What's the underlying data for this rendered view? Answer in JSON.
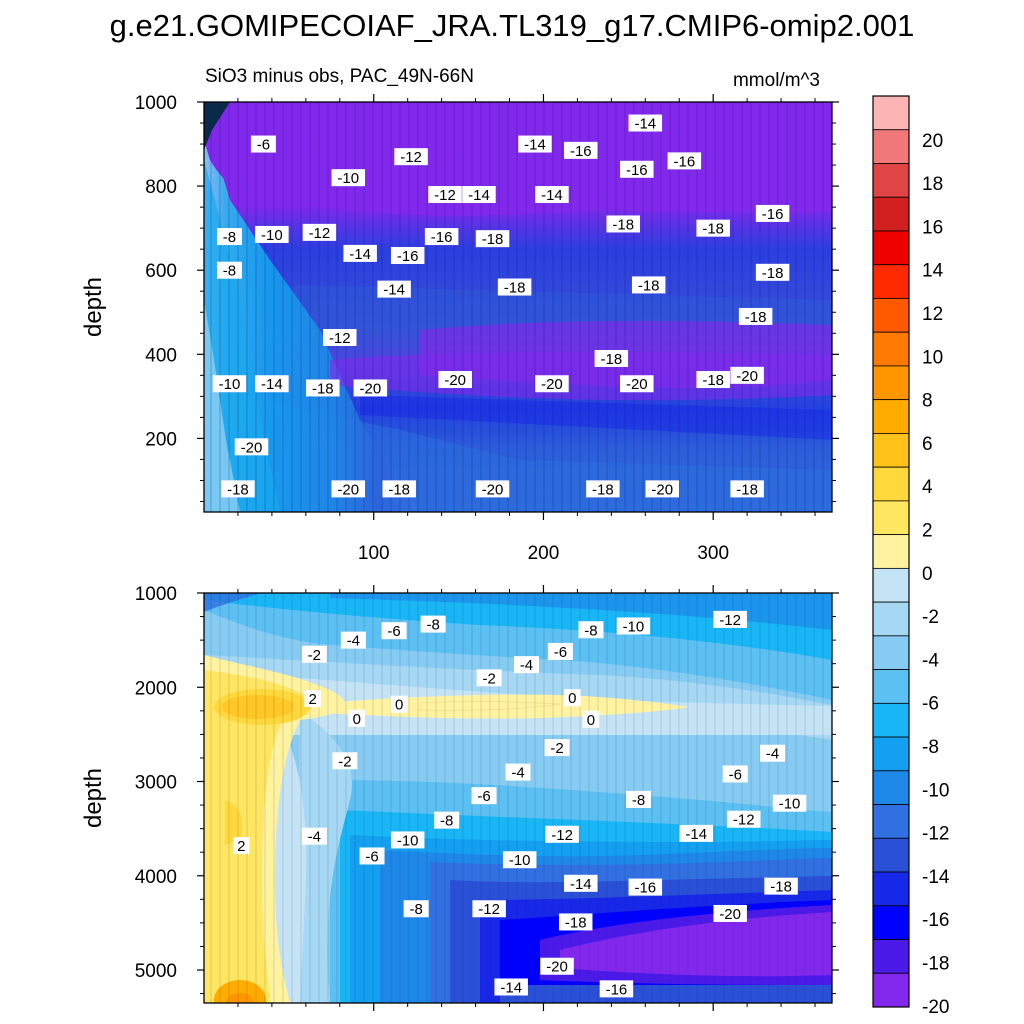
{
  "title": "g.e21.GOMIPECOIAF_JRA.TL319_g17.CMIP6-omip2.001",
  "subtitle_left": "SiO3 minus obs, PAC_49N-66N",
  "subtitle_right": "mmol/m^3",
  "chart_data": [
    {
      "type": "heatmap",
      "panel": "upper",
      "ylabel": "depth",
      "xlabel": "",
      "xlim": [
        0,
        370
      ],
      "ylim": [
        1000,
        25
      ],
      "y_inverted": true,
      "xticks": [
        100,
        200,
        300
      ],
      "yticks": [
        200,
        400,
        600,
        800,
        1000
      ],
      "ytick_labels": [
        "200",
        "400",
        "600",
        "800",
        "1000"
      ],
      "contour_labels": [
        {
          "x": 20,
          "y": 80,
          "text": "-18"
        },
        {
          "x": 85,
          "y": 80,
          "text": "-20"
        },
        {
          "x": 115,
          "y": 80,
          "text": "-18"
        },
        {
          "x": 170,
          "y": 80,
          "text": "-20"
        },
        {
          "x": 235,
          "y": 80,
          "text": "-18"
        },
        {
          "x": 270,
          "y": 80,
          "text": "-20"
        },
        {
          "x": 320,
          "y": 80,
          "text": "-18"
        },
        {
          "x": 28,
          "y": 180,
          "text": "-20"
        },
        {
          "x": 15,
          "y": 330,
          "text": "-10"
        },
        {
          "x": 40,
          "y": 330,
          "text": "-14"
        },
        {
          "x": 70,
          "y": 320,
          "text": "-18"
        },
        {
          "x": 98,
          "y": 320,
          "text": "-20"
        },
        {
          "x": 148,
          "y": 340,
          "text": "-20"
        },
        {
          "x": 205,
          "y": 330,
          "text": "-20"
        },
        {
          "x": 255,
          "y": 330,
          "text": "-20"
        },
        {
          "x": 300,
          "y": 340,
          "text": "-18"
        },
        {
          "x": 320,
          "y": 350,
          "text": "-20"
        },
        {
          "x": 240,
          "y": 390,
          "text": "-18"
        },
        {
          "x": 80,
          "y": 440,
          "text": "-12"
        },
        {
          "x": 325,
          "y": 490,
          "text": "-18"
        },
        {
          "x": 112,
          "y": 555,
          "text": "-14"
        },
        {
          "x": 183,
          "y": 560,
          "text": "-18"
        },
        {
          "x": 262,
          "y": 565,
          "text": "-18"
        },
        {
          "x": 335,
          "y": 595,
          "text": "-18"
        },
        {
          "x": 15,
          "y": 600,
          "text": "-8"
        },
        {
          "x": 92,
          "y": 640,
          "text": "-14"
        },
        {
          "x": 120,
          "y": 635,
          "text": "-16"
        },
        {
          "x": 170,
          "y": 675,
          "text": "-18"
        },
        {
          "x": 15,
          "y": 680,
          "text": "-8"
        },
        {
          "x": 40,
          "y": 685,
          "text": "-10"
        },
        {
          "x": 68,
          "y": 690,
          "text": "-12"
        },
        {
          "x": 140,
          "y": 680,
          "text": "-16"
        },
        {
          "x": 247,
          "y": 710,
          "text": "-18"
        },
        {
          "x": 300,
          "y": 700,
          "text": "-18"
        },
        {
          "x": 335,
          "y": 735,
          "text": "-16"
        },
        {
          "x": 142,
          "y": 780,
          "text": "-12"
        },
        {
          "x": 162,
          "y": 780,
          "text": "-14"
        },
        {
          "x": 205,
          "y": 780,
          "text": "-14"
        },
        {
          "x": 85,
          "y": 820,
          "text": "-10"
        },
        {
          "x": 255,
          "y": 840,
          "text": "-16"
        },
        {
          "x": 283,
          "y": 860,
          "text": "-16"
        },
        {
          "x": 122,
          "y": 870,
          "text": "-12"
        },
        {
          "x": 222,
          "y": 885,
          "text": "-16"
        },
        {
          "x": 35,
          "y": 900,
          "text": "-6"
        },
        {
          "x": 195,
          "y": 900,
          "text": "-14"
        },
        {
          "x": 260,
          "y": 950,
          "text": "-14"
        }
      ]
    },
    {
      "type": "heatmap",
      "panel": "lower",
      "ylabel": "depth",
      "xlabel": "",
      "xlim": [
        0,
        370
      ],
      "ylim": [
        1000,
        5350
      ],
      "y_inverted": true,
      "xticks": [
        100,
        200,
        300
      ],
      "yticks": [
        1000,
        2000,
        3000,
        4000,
        5000
      ],
      "ytick_labels": [
        "1000",
        "2000",
        "3000",
        "4000",
        "5000"
      ],
      "contour_labels": [
        {
          "x": 135,
          "y": 1330,
          "text": "-8"
        },
        {
          "x": 112,
          "y": 1400,
          "text": "-6"
        },
        {
          "x": 88,
          "y": 1500,
          "text": "-4"
        },
        {
          "x": 65,
          "y": 1650,
          "text": "-2"
        },
        {
          "x": 228,
          "y": 1390,
          "text": "-8"
        },
        {
          "x": 253,
          "y": 1350,
          "text": "-10"
        },
        {
          "x": 310,
          "y": 1280,
          "text": "-12"
        },
        {
          "x": 210,
          "y": 1620,
          "text": "-6"
        },
        {
          "x": 190,
          "y": 1760,
          "text": "-4"
        },
        {
          "x": 168,
          "y": 1900,
          "text": "-2"
        },
        {
          "x": 64,
          "y": 2120,
          "text": "2"
        },
        {
          "x": 115,
          "y": 2180,
          "text": "0"
        },
        {
          "x": 90,
          "y": 2330,
          "text": "0"
        },
        {
          "x": 217,
          "y": 2110,
          "text": "0"
        },
        {
          "x": 228,
          "y": 2340,
          "text": "0"
        },
        {
          "x": 208,
          "y": 2640,
          "text": "-2"
        },
        {
          "x": 335,
          "y": 2700,
          "text": "-4"
        },
        {
          "x": 83,
          "y": 2780,
          "text": "-2"
        },
        {
          "x": 185,
          "y": 2900,
          "text": "-4"
        },
        {
          "x": 313,
          "y": 2920,
          "text": "-6"
        },
        {
          "x": 165,
          "y": 3150,
          "text": "-6"
        },
        {
          "x": 256,
          "y": 3190,
          "text": "-8"
        },
        {
          "x": 345,
          "y": 3230,
          "text": "-10"
        },
        {
          "x": 143,
          "y": 3410,
          "text": "-8"
        },
        {
          "x": 318,
          "y": 3400,
          "text": "-12"
        },
        {
          "x": 290,
          "y": 3550,
          "text": "-14"
        },
        {
          "x": 211,
          "y": 3560,
          "text": "-12"
        },
        {
          "x": 65,
          "y": 3580,
          "text": "-4"
        },
        {
          "x": 120,
          "y": 3620,
          "text": "-10"
        },
        {
          "x": 22,
          "y": 3680,
          "text": "2"
        },
        {
          "x": 99,
          "y": 3790,
          "text": "-6"
        },
        {
          "x": 186,
          "y": 3830,
          "text": "-10"
        },
        {
          "x": 222,
          "y": 4080,
          "text": "-14"
        },
        {
          "x": 260,
          "y": 4120,
          "text": "-16"
        },
        {
          "x": 340,
          "y": 4110,
          "text": "-18"
        },
        {
          "x": 168,
          "y": 4350,
          "text": "-12"
        },
        {
          "x": 125,
          "y": 4350,
          "text": "-8"
        },
        {
          "x": 310,
          "y": 4400,
          "text": "-20"
        },
        {
          "x": 219,
          "y": 4490,
          "text": "-18"
        },
        {
          "x": 208,
          "y": 4960,
          "text": "-20"
        },
        {
          "x": 181,
          "y": 5180,
          "text": "-14"
        },
        {
          "x": 243,
          "y": 5200,
          "text": "-16"
        }
      ]
    }
  ],
  "colorbar": {
    "labels": [
      "20",
      "18",
      "16",
      "14",
      "12",
      "10",
      "8",
      "6",
      "4",
      "2",
      "0",
      "-2",
      "-4",
      "-6",
      "-8",
      "-10",
      "-12",
      "-14",
      "-16",
      "-18",
      "-20"
    ],
    "levels_top_to_bottom": [
      21,
      20,
      19,
      18,
      17,
      16,
      15,
      14,
      13,
      12,
      11,
      10,
      9,
      8,
      7,
      6,
      5,
      4,
      3,
      2,
      1,
      0,
      -1,
      -2,
      -3,
      -4,
      -5,
      -6,
      -7,
      -8,
      -9,
      -10,
      -11,
      -12,
      -13,
      -14,
      -15,
      -16,
      -17,
      -18,
      -19,
      -20,
      -21
    ],
    "colors_top_to_bottom": [
      "#fcb4b4",
      "#f07878",
      "#e04444",
      "#d02020",
      "#ee0000",
      "#ff2a00",
      "#ff5a00",
      "#ff7a00",
      "#ff9600",
      "#ffac00",
      "#ffc21a",
      "#ffd83c",
      "#ffe660",
      "#fff3a0",
      "#c4e4f6",
      "#a6d8f4",
      "#86ccf2",
      "#5cc0f2",
      "#18b6f4",
      "#14a0f0",
      "#1e88e8",
      "#3070e0",
      "#2a50d8",
      "#1828e8",
      "#0000ff",
      "#4c1ae8",
      "#8228ec"
    ]
  }
}
